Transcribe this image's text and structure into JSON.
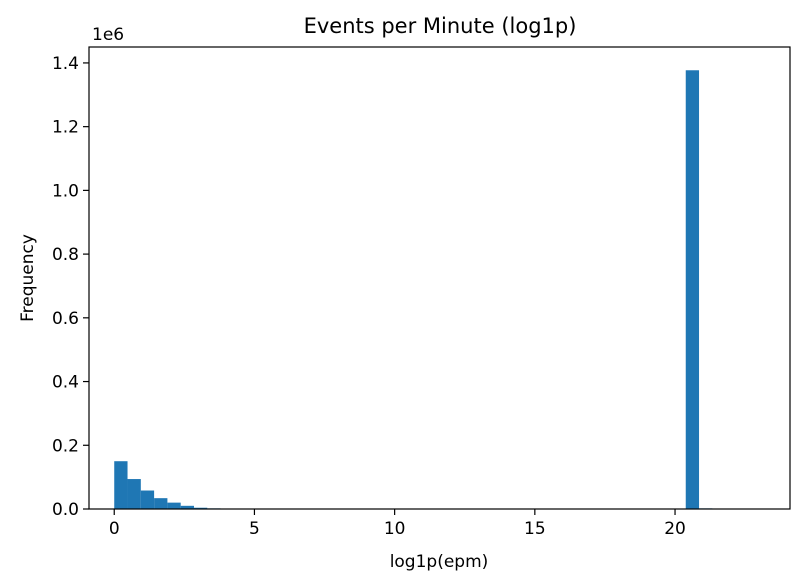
{
  "chart_data": {
    "type": "bar",
    "title": "Events per Minute (log1p)",
    "xlabel": "log1p(epm)",
    "ylabel": "Frequency",
    "y_offset_label": "1e6",
    "y_scale_factor": 1000000,
    "xlim": [
      -0.9,
      24.1
    ],
    "ylim": [
      0,
      1.45
    ],
    "bin_width": 0.474,
    "x_ticks": [
      0,
      5,
      10,
      15,
      20
    ],
    "y_ticks": [
      0.0,
      0.2,
      0.4,
      0.6,
      0.8,
      1.0,
      1.2,
      1.4
    ],
    "bars": [
      {
        "x0": 0.0,
        "value": 0.15
      },
      {
        "x0": 0.474,
        "value": 0.094
      },
      {
        "x0": 0.948,
        "value": 0.058
      },
      {
        "x0": 1.422,
        "value": 0.034
      },
      {
        "x0": 1.896,
        "value": 0.02
      },
      {
        "x0": 2.37,
        "value": 0.01
      },
      {
        "x0": 2.844,
        "value": 0.004
      },
      {
        "x0": 3.318,
        "value": 0.002
      },
      {
        "x0": 3.792,
        "value": 0.001
      },
      {
        "x0": 20.382,
        "value": 1.377
      },
      {
        "x0": 20.856,
        "value": 0.002
      }
    ],
    "grid": false,
    "colors": {
      "bar": "#1f77b4"
    }
  }
}
